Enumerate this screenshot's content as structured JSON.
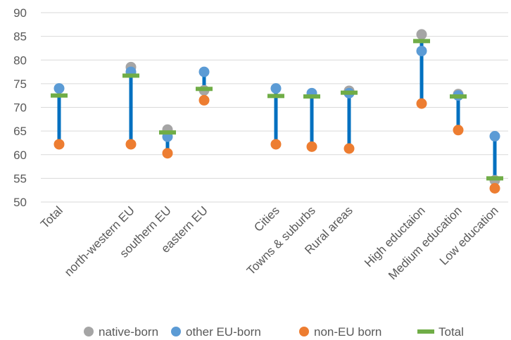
{
  "chart_data": {
    "type": "scatter",
    "categories": [
      "Total",
      "north-western EU",
      "southern EU",
      "eastern EU",
      "",
      "Cities",
      "Towns & suburbs",
      "Rural areas",
      "",
      "High eductaion",
      "Medium education",
      "Low education"
    ],
    "series": [
      {
        "name": "native-born",
        "marker": "circle",
        "color": "#a5a5a5",
        "values": [
          null,
          78.5,
          65.3,
          73.6,
          null,
          null,
          null,
          73.5,
          null,
          85.4,
          72.8,
          54.6
        ]
      },
      {
        "name": "other EU-born",
        "marker": "circle",
        "color": "#5b9bd5",
        "values": [
          74.0,
          77.5,
          63.8,
          77.5,
          null,
          74.0,
          73.0,
          73.0,
          null,
          81.9,
          72.5,
          63.9
        ]
      },
      {
        "name": "non-EU born",
        "marker": "circle",
        "color": "#ed7d31",
        "values": [
          62.2,
          62.2,
          60.3,
          71.5,
          null,
          62.2,
          61.7,
          61.3,
          null,
          70.8,
          65.2,
          52.9
        ]
      },
      {
        "name": "Total",
        "marker": "dash",
        "color": "#70ad47",
        "values": [
          72.5,
          76.7,
          64.7,
          73.9,
          null,
          72.4,
          72.3,
          73.1,
          null,
          84.0,
          72.3,
          55.0
        ]
      }
    ],
    "range_bar_color": "#0070c0",
    "xlabel": "",
    "ylabel": "",
    "ylim": [
      50,
      90
    ],
    "yticks": [
      50,
      55,
      60,
      65,
      70,
      75,
      80,
      85,
      90
    ],
    "grid": true,
    "legend": "bottom"
  }
}
